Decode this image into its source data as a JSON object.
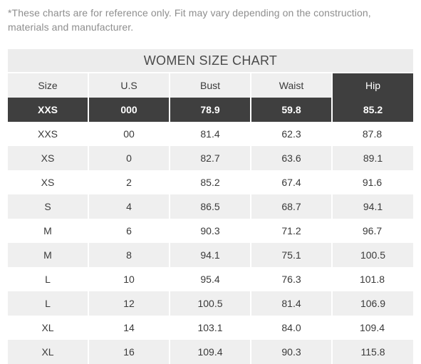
{
  "note": "*These charts are for reference only. Fit may vary depending on the construction, materials and manufacturer.",
  "chart": {
    "title": "WOMEN SIZE CHART",
    "headers": [
      "Size",
      "U.S",
      "Bust",
      "Waist",
      "Hip"
    ],
    "highlighted_header_index": 4,
    "highlighted_row_index": 0,
    "rows": [
      [
        "XXS",
        "000",
        "78.9",
        "59.8",
        "85.2"
      ],
      [
        "XXS",
        "00",
        "81.4",
        "62.3",
        "87.8"
      ],
      [
        "XS",
        "0",
        "82.7",
        "63.6",
        "89.1"
      ],
      [
        "XS",
        "2",
        "85.2",
        "67.4",
        "91.6"
      ],
      [
        "S",
        "4",
        "86.5",
        "68.7",
        "94.1"
      ],
      [
        "M",
        "6",
        "90.3",
        "71.2",
        "96.7"
      ],
      [
        "M",
        "8",
        "94.1",
        "75.1",
        "100.5"
      ],
      [
        "L",
        "10",
        "95.4",
        "76.3",
        "101.8"
      ],
      [
        "L",
        "12",
        "100.5",
        "81.4",
        "106.9"
      ],
      [
        "XL",
        "14",
        "103.1",
        "84.0",
        "109.4"
      ],
      [
        "XL",
        "16",
        "109.4",
        "90.3",
        "115.8"
      ]
    ]
  },
  "colors": {
    "highlight_bg": "#3f3f3f",
    "row_grey": "#efefef",
    "note_text": "#8e8e8e"
  }
}
